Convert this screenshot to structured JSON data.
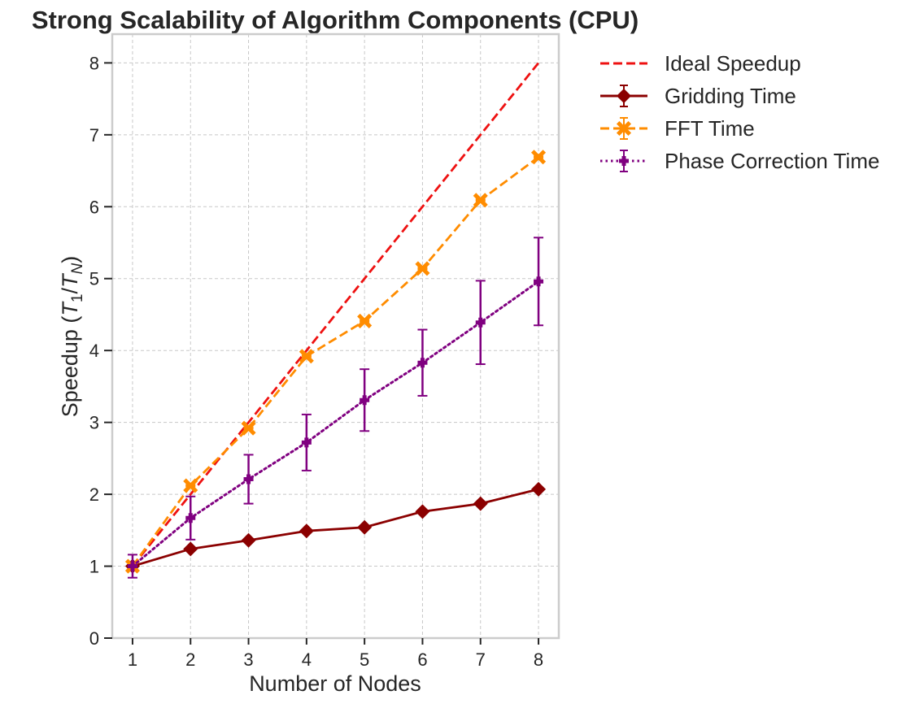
{
  "chart_data": {
    "type": "line",
    "title": "Strong Scalability of Algorithm Components (CPU)",
    "xlabel": "Number of Nodes",
    "ylabel_prefix": "Speedup (",
    "ylabel_t": "T",
    "ylabel_sub1": "1",
    "ylabel_slash": "/",
    "ylabel_sub2": "N",
    "ylabel_suffix": ")",
    "x": [
      1,
      2,
      3,
      4,
      5,
      6,
      7,
      8
    ],
    "xticks": [
      "1",
      "2",
      "3",
      "4",
      "5",
      "6",
      "7",
      "8"
    ],
    "yticks": [
      "0",
      "1",
      "2",
      "3",
      "4",
      "5",
      "6",
      "7",
      "8"
    ],
    "ylim": [
      0,
      8.4
    ],
    "xlim": [
      0.65,
      8.35
    ],
    "grid": true,
    "legend_position": "outside-top-right",
    "series": [
      {
        "name": "Ideal Speedup",
        "color": "#ee1111",
        "dash": "dashed",
        "marker": "none",
        "values": [
          1,
          2,
          3,
          4,
          5,
          6,
          7,
          8
        ]
      },
      {
        "name": "Gridding Time",
        "color": "#8b0000",
        "dash": "solid",
        "marker": "diamond",
        "values": [
          1.0,
          1.24,
          1.36,
          1.49,
          1.54,
          1.76,
          1.87,
          2.07
        ],
        "errors": [
          0.02,
          0.02,
          0.02,
          0.02,
          0.02,
          0.02,
          0.02,
          0.02
        ]
      },
      {
        "name": "FFT Time",
        "color": "#ff8c00",
        "dash": "dashed",
        "marker": "x",
        "values": [
          1.0,
          2.12,
          2.92,
          3.92,
          4.41,
          5.14,
          6.09,
          6.69
        ],
        "errors": [
          0.01,
          0.01,
          0.01,
          0.01,
          0.01,
          0.01,
          0.01,
          0.01
        ]
      },
      {
        "name": "Phase Correction Time",
        "color": "#800080",
        "dash": "dotted",
        "marker": "plus",
        "values": [
          1.0,
          1.67,
          2.21,
          2.72,
          3.31,
          3.83,
          4.39,
          4.96
        ],
        "errors": [
          0.16,
          0.3,
          0.34,
          0.39,
          0.43,
          0.46,
          0.58,
          0.61
        ]
      }
    ]
  }
}
